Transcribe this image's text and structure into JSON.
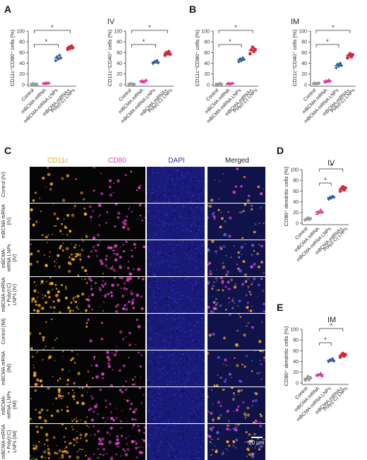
{
  "panels": {
    "A": {
      "label": "A",
      "route": "IV"
    },
    "B": {
      "label": "B",
      "route": "IM"
    },
    "C": {
      "label": "C"
    },
    "D": {
      "label": "D",
      "route": "IV"
    },
    "E": {
      "label": "E",
      "route": "IM"
    }
  },
  "categories": [
    "Control",
    "mBCMA mRNA",
    "mBCMA-mRNA LNPs",
    "mBCMA-mRNA+ Poly(I:C) LNPs"
  ],
  "colors": {
    "Control": "#9b9b9b",
    "mBCMA mRNA": "#e0389a",
    "mBCMA-mRNA LNPs": "#2f5f9e",
    "mBCMA-mRNA+ Poly(I:C) LNPs": "#d4283c"
  },
  "microscopy": {
    "channels": [
      "CD11c",
      "CD80",
      "DAPI",
      "Merged"
    ],
    "channel_colors": [
      "#f5a623",
      "#e040c8",
      "#1c1a9c",
      "#ffffff"
    ],
    "rows": [
      "Control (IV)",
      "mBCMA mRNA (IV)",
      "mBCMA- mRNA LNPs (IV)",
      "mBCMA-mRNA + Poly(I:C) LNPs (IV)",
      "Control (IM)",
      "mBCMA mRNA (IM)",
      "mBCMA- mRNA LNPs (IM)",
      "mBCMA-mRNA + Poly(I:C) LNPs (IM)"
    ],
    "scale_bar": "20 μm"
  },
  "chart_data": [
    {
      "id": "A1",
      "type": "scatter",
      "route": "IV",
      "ylabel": "CD11c⁺CD80⁺ cells (%)",
      "yticks": [
        0,
        20,
        40,
        60,
        80,
        100
      ],
      "ylim": [
        0,
        100
      ],
      "categories": [
        "Control",
        "mBCMA mRNA",
        "mBCMA-mRNA LNPs",
        "mBCMA-mRNA+ Poly(I:C) LNPs"
      ],
      "series": [
        [
          1,
          2,
          0.5,
          1.5,
          0.8
        ],
        [
          3,
          2,
          4,
          2.5,
          3.5
        ],
        [
          45,
          52,
          48,
          55,
          50
        ],
        [
          66,
          70,
          68,
          72,
          69
        ]
      ],
      "significance": [
        [
          "1-3",
          "*"
        ],
        [
          "1-4",
          "*"
        ]
      ]
    },
    {
      "id": "A2",
      "type": "scatter",
      "route": "IV",
      "ylabel": "CD11c⁺CD40⁺ cells (%)",
      "yticks": [
        0,
        20,
        40,
        60,
        80,
        100
      ],
      "ylim": [
        0,
        100
      ],
      "categories": [
        "Control",
        "mBCMA mRNA",
        "mBCMA-mRNA LNPs",
        "mBCMA-mRNA+ Poly(I:C) LNPs"
      ],
      "series": [
        [
          1,
          2,
          1.5,
          0.5,
          1
        ],
        [
          6,
          8,
          5,
          7,
          9
        ],
        [
          40,
          43,
          42,
          45,
          41
        ],
        [
          55,
          60,
          58,
          62,
          57
        ]
      ],
      "significance": [
        [
          "1-3",
          "*"
        ],
        [
          "1-4",
          "*"
        ]
      ]
    },
    {
      "id": "B1",
      "type": "scatter",
      "route": "IM",
      "ylabel": "CD11c⁺CD80⁺ cells (%)",
      "yticks": [
        0,
        20,
        40,
        60,
        80,
        100
      ],
      "ylim": [
        0,
        100
      ],
      "categories": [
        "Control",
        "mBCMA mRNA",
        "mBCMA-mRNA LNPs",
        "mBCMA-mRNA+ Poly(I:C) LNPs"
      ],
      "series": [
        [
          1,
          0.5,
          1.5,
          2,
          1
        ],
        [
          2,
          3,
          1.5,
          2.5,
          3
        ],
        [
          43,
          48,
          45,
          50,
          47
        ],
        [
          58,
          65,
          70,
          62,
          66
        ]
      ],
      "significance": [
        [
          "1-3",
          "*"
        ],
        [
          "1-4",
          "*"
        ]
      ]
    },
    {
      "id": "B2",
      "type": "scatter",
      "route": "IM",
      "ylabel": "CD11c⁺CD40⁺ cells (%)",
      "yticks": [
        0,
        20,
        40,
        60,
        80,
        100
      ],
      "ylim": [
        0,
        100
      ],
      "categories": [
        "Control",
        "mBCMA mRNA",
        "mBCMA-mRNA LNPs",
        "mBCMA-mRNA+ Poly(I:C) LNPs"
      ],
      "series": [
        [
          2,
          3,
          1.5,
          2.5,
          3
        ],
        [
          5,
          8,
          6,
          9,
          7
        ],
        [
          32,
          38,
          35,
          40,
          36
        ],
        [
          50,
          55,
          58,
          52,
          56
        ]
      ],
      "significance": [
        [
          "1-3",
          "*"
        ],
        [
          "1-4",
          "*"
        ]
      ]
    },
    {
      "id": "D",
      "type": "scatter",
      "route": "IV",
      "ylabel": "CD80⁺ dendritic cells (%)",
      "yticks": [
        0,
        20,
        40,
        60,
        80,
        100
      ],
      "ylim": [
        0,
        100
      ],
      "categories": [
        "Control",
        "mBCMA mRNA",
        "mBCMA-mRNA LNPs",
        "mBCMA-mRNA+ Poly(I:C) LNPs"
      ],
      "series": [
        [
          6,
          8,
          10,
          7,
          9
        ],
        [
          18,
          22,
          20,
          25,
          21
        ],
        [
          45,
          48,
          47,
          50,
          49
        ],
        [
          60,
          65,
          68,
          62,
          66
        ]
      ],
      "significance": [
        [
          "2-3",
          "*"
        ],
        [
          "2-4",
          "*"
        ]
      ]
    },
    {
      "id": "E",
      "type": "scatter",
      "route": "IM",
      "ylabel": "CD80⁺ dendritic cells (%)",
      "yticks": [
        0,
        20,
        40,
        60,
        80,
        100
      ],
      "ylim": [
        0,
        100
      ],
      "categories": [
        "Control",
        "mBCMA mRNA",
        "mBCMA-mRNA LNPs",
        "mBCMA-mRNA+ Poly(I:C) LNPs"
      ],
      "series": [
        [
          5,
          8,
          12,
          6,
          10
        ],
        [
          14,
          16,
          15,
          18,
          13
        ],
        [
          40,
          43,
          42,
          45,
          41
        ],
        [
          48,
          52,
          55,
          50,
          53
        ]
      ],
      "significance": [
        [
          "2-3",
          "*"
        ],
        [
          "2-4",
          "*"
        ]
      ]
    }
  ]
}
